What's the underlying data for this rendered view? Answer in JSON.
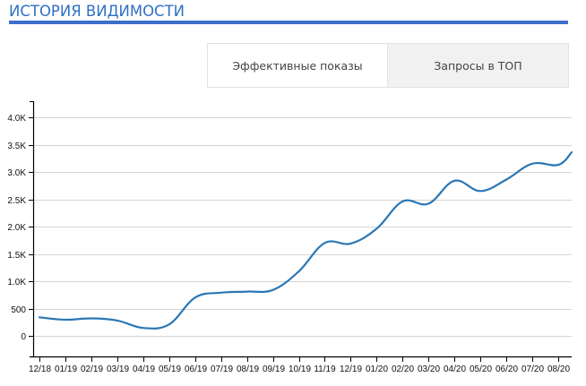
{
  "header": {
    "title": "ИСТОРИЯ ВИДИМОСТИ"
  },
  "tabs": [
    {
      "label": "Эффективные показы",
      "active": true
    },
    {
      "label": "Запросы в ТОП",
      "active": false
    }
  ],
  "colors": {
    "title": "#2f6fc5",
    "title_bar": "#3b6fc9",
    "line": "#2a77b5",
    "grid": "#d4d4d4",
    "axis": "#000000"
  },
  "chart_data": {
    "type": "line",
    "title": "",
    "xlabel": "",
    "ylabel": "",
    "ylim": [
      -400,
      4300
    ],
    "yticks": [
      0,
      500,
      1000,
      1500,
      2000,
      2500,
      3000,
      3500,
      4000
    ],
    "ytick_labels": [
      "0",
      "500",
      "1.0K",
      "1.5K",
      "2.0K",
      "2.5K",
      "3.0K",
      "3.5K",
      "4.0K"
    ],
    "grid": true,
    "legend": null,
    "categories": [
      "12/18",
      "01/19",
      "02/19",
      "03/19",
      "04/19",
      "05/19",
      "06/19",
      "07/19",
      "08/19",
      "09/19",
      "10/19",
      "11/19",
      "12/19",
      "01/20",
      "02/20",
      "03/20",
      "04/20",
      "05/20",
      "06/20",
      "07/20",
      "08/20"
    ],
    "series": [
      {
        "name": "Эффективные показы",
        "values": [
          340,
          295,
          320,
          280,
          145,
          210,
          700,
          790,
          810,
          840,
          1180,
          1700,
          1690,
          1960,
          2460,
          2420,
          2840,
          2650,
          2860,
          3150,
          3130
        ],
        "last_partial_value": 3360
      }
    ]
  }
}
